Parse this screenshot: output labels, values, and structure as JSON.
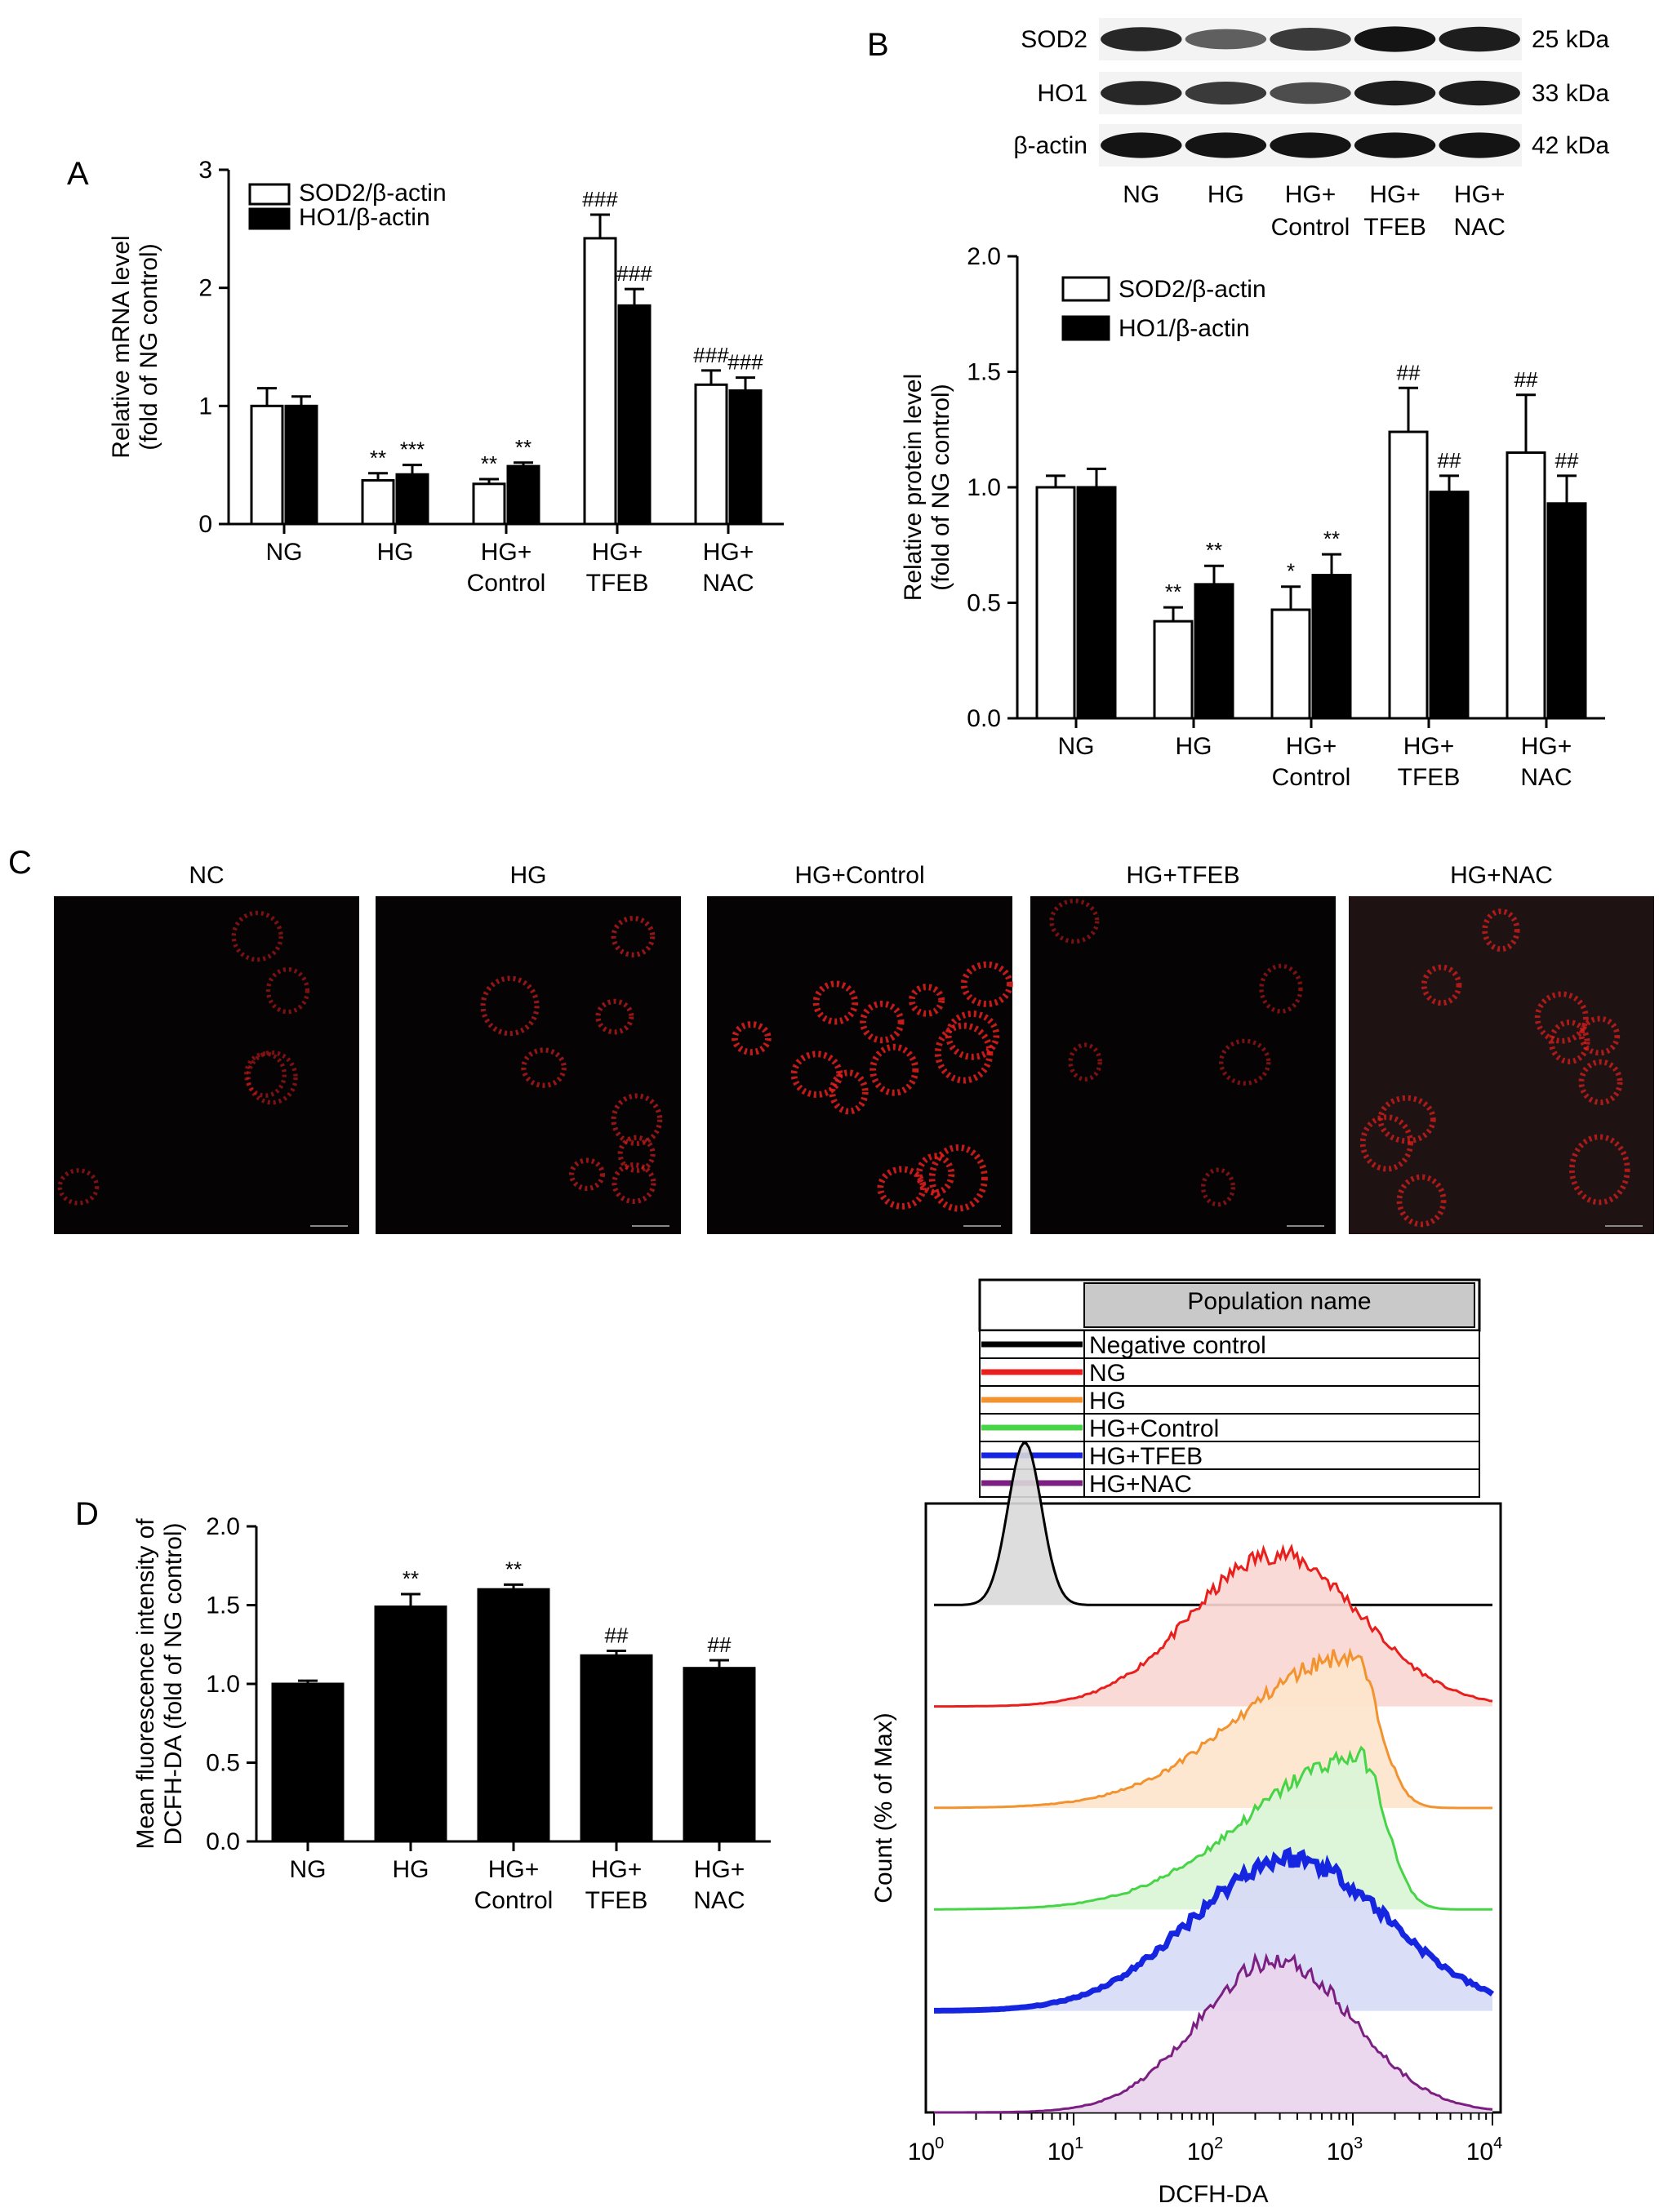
{
  "panels": {
    "A": "A",
    "B": "B",
    "C": "C",
    "D": "D"
  },
  "chart_data": [
    {
      "panel": "A",
      "type": "bar",
      "ylabel_lines": [
        "Relative mRNA level",
        "(fold of NG control)"
      ],
      "ylim": [
        0,
        3
      ],
      "yticks": [
        "0",
        "1",
        "2",
        "3"
      ],
      "categories": [
        [
          "NG"
        ],
        [
          "HG"
        ],
        [
          "HG+",
          "Control"
        ],
        [
          "HG+",
          "TFEB"
        ],
        [
          "HG+",
          "NAC"
        ]
      ],
      "series": [
        {
          "name": "SOD2/β-actin",
          "color": "#ffffff",
          "values": [
            1.0,
            0.37,
            0.34,
            2.42,
            1.18
          ],
          "errors": [
            0.15,
            0.06,
            0.04,
            0.2,
            0.12
          ],
          "annotations": [
            "",
            "**",
            "**",
            "###",
            "###"
          ]
        },
        {
          "name": "HO1/β-actin",
          "color": "#000000",
          "values": [
            1.0,
            0.42,
            0.49,
            1.85,
            1.13
          ],
          "errors": [
            0.08,
            0.08,
            0.03,
            0.14,
            0.11
          ],
          "annotations": [
            "",
            "***",
            "**",
            "###",
            "###"
          ]
        }
      ]
    },
    {
      "panel": "B",
      "type": "bar",
      "ylabel_lines": [
        "Relative protein level",
        "(fold of NG control)"
      ],
      "ylim": [
        0,
        2
      ],
      "yticks": [
        "0.0",
        "0.5",
        "1.0",
        "1.5",
        "2.0"
      ],
      "categories": [
        [
          "NG"
        ],
        [
          "HG"
        ],
        [
          "HG+",
          "Control"
        ],
        [
          "HG+",
          "TFEB"
        ],
        [
          "HG+",
          "NAC"
        ]
      ],
      "series": [
        {
          "name": "SOD2/β-actin",
          "color": "#ffffff",
          "values": [
            1.0,
            0.42,
            0.47,
            1.24,
            1.15
          ],
          "errors": [
            0.05,
            0.06,
            0.1,
            0.19,
            0.25
          ],
          "annotations": [
            "",
            "**",
            "*",
            "##",
            "##"
          ]
        },
        {
          "name": "HO1/β-actin",
          "color": "#000000",
          "values": [
            1.0,
            0.58,
            0.62,
            0.98,
            0.93
          ],
          "errors": [
            0.08,
            0.08,
            0.09,
            0.07,
            0.12
          ],
          "annotations": [
            "",
            "**",
            "**",
            "##",
            "##"
          ]
        }
      ]
    },
    {
      "panel": "D",
      "type": "bar",
      "ylabel_lines": [
        "Mean fluorescence intensity of",
        "DCFH-DA (fold of NG control)"
      ],
      "ylim": [
        0,
        2
      ],
      "yticks": [
        "0.0",
        "0.5",
        "1.0",
        "1.5",
        "2.0"
      ],
      "categories": [
        [
          "NG"
        ],
        [
          "HG"
        ],
        [
          "HG+",
          "Control"
        ],
        [
          "HG+",
          "TFEB"
        ],
        [
          "HG+",
          "NAC"
        ]
      ],
      "series": [
        {
          "name": "",
          "color": "#000000",
          "values": [
            1.0,
            1.49,
            1.6,
            1.18,
            1.1
          ],
          "errors": [
            0.02,
            0.08,
            0.03,
            0.03,
            0.05
          ],
          "annotations": [
            "",
            "**",
            "**",
            "##",
            "##"
          ]
        }
      ]
    },
    {
      "panel": "D-histogram",
      "type": "area",
      "xlabel": "DCFH-DA",
      "ylabel": "Count (% of Max)",
      "xscale": "log",
      "xticks": [
        {
          "base": "10",
          "exp": "0"
        },
        {
          "base": "10",
          "exp": "1"
        },
        {
          "base": "10",
          "exp": "2"
        },
        {
          "base": "10",
          "exp": "3"
        },
        {
          "base": "10",
          "exp": "4"
        }
      ],
      "legend_header": "Population name",
      "series": [
        {
          "name": "Negative control",
          "color": "#000000",
          "fill": "#d9d9d9",
          "peak_log": 0.65,
          "spread": 0.12,
          "shape": "normal"
        },
        {
          "name": "NG",
          "color": "#e8201d",
          "fill": "#f9d6d2",
          "peak_log": 2.45,
          "spread": 0.6,
          "shape": "broad"
        },
        {
          "name": "HG",
          "color": "#f39330",
          "fill": "#fde4cc",
          "peak_log": 3.0,
          "spread": 0.8,
          "shape": "skew"
        },
        {
          "name": "HG+Control",
          "color": "#47d447",
          "fill": "#d9f5d6",
          "peak_log": 3.05,
          "spread": 0.8,
          "shape": "skew"
        },
        {
          "name": "HG+TFEB",
          "color": "#1626e0",
          "fill": "#d7daf6",
          "peak_log": 2.55,
          "spread": 0.7,
          "shape": "broad"
        },
        {
          "name": "HG+NAC",
          "color": "#7b1f82",
          "fill": "#ead4ec",
          "peak_log": 2.45,
          "spread": 0.55,
          "shape": "broad"
        }
      ]
    }
  ],
  "western_blot": {
    "rows": [
      {
        "protein": "SOD2",
        "size": "25 kDa",
        "intensities": [
          0.85,
          0.55,
          0.75,
          0.95,
          0.9
        ]
      },
      {
        "protein": "HO1",
        "size": "33 kDa",
        "intensities": [
          0.85,
          0.75,
          0.65,
          0.9,
          0.9
        ]
      },
      {
        "protein": "β-actin",
        "size": "42 kDa",
        "intensities": [
          0.95,
          0.95,
          0.95,
          0.95,
          0.95
        ]
      }
    ],
    "lanes": [
      [
        "NG"
      ],
      [
        "HG"
      ],
      [
        "HG+",
        "Control"
      ],
      [
        "HG+",
        "TFEB"
      ],
      [
        "HG+",
        "NAC"
      ]
    ]
  },
  "micrographs": {
    "labels": [
      "NC",
      "HG",
      "HG+Control",
      "HG+TFEB",
      "HG+NAC"
    ],
    "density": [
      0.35,
      0.55,
      0.95,
      0.35,
      0.7
    ]
  }
}
